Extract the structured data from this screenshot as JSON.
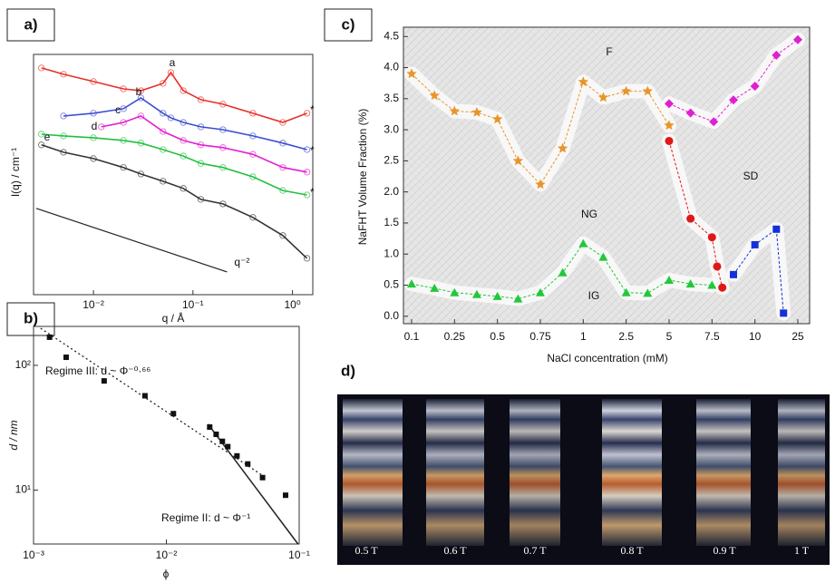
{
  "chart_data": [
    {
      "type": "line",
      "label": "a)",
      "xlabel": "q / Å",
      "ylabel": "I(q) / cm⁻¹",
      "log_x": true,
      "log_y": true,
      "xlim": [
        0.0025,
        1.6
      ],
      "ylim": [
        0.001,
        1000
      ],
      "xticks": [
        {
          "value": 0.01,
          "label": "10⁻²"
        },
        {
          "value": 0.1,
          "label": "10⁻¹"
        },
        {
          "value": 1,
          "label": "10⁰"
        }
      ],
      "series": [
        {
          "name": "a",
          "color": "#e8302a",
          "x": [
            0.003,
            0.005,
            0.01,
            0.02,
            0.03,
            0.05,
            0.06,
            0.08,
            0.12,
            0.2,
            0.4,
            0.8,
            1.4
          ],
          "values": [
            460,
            320,
            210,
            138,
            124,
            189,
            353,
            124,
            74,
            57,
            34,
            20,
            34
          ]
        },
        {
          "name": "b",
          "color": "#3a4fd0",
          "x": [
            0.005,
            0.01,
            0.02,
            0.03,
            0.05,
            0.06,
            0.08,
            0.12,
            0.2,
            0.4,
            0.8,
            1.4
          ],
          "values": [
            29,
            34,
            44,
            82,
            34,
            26,
            20,
            15.5,
            13.2,
            9.2,
            6.1,
            4.2
          ]
        },
        {
          "name": "c",
          "color": "#e020d0",
          "x": [
            0.012,
            0.02,
            0.03,
            0.05,
            0.08,
            0.12,
            0.2,
            0.4,
            0.8,
            1.4
          ],
          "values": [
            15.5,
            20,
            29,
            11.9,
            7.1,
            5.5,
            4.7,
            3.2,
            1.5,
            1.15
          ]
        },
        {
          "name": "d",
          "color": "#22c040",
          "x": [
            0.003,
            0.005,
            0.01,
            0.02,
            0.03,
            0.05,
            0.08,
            0.12,
            0.2,
            0.4,
            0.8,
            1.4
          ],
          "values": [
            10.2,
            9.2,
            8.3,
            7.1,
            6.1,
            4.2,
            2.9,
            1.9,
            1.5,
            0.88,
            0.4,
            0.31
          ]
        },
        {
          "name": "e",
          "color": "#333333",
          "x": [
            0.003,
            0.005,
            0.01,
            0.02,
            0.03,
            0.05,
            0.08,
            0.12,
            0.2,
            0.4,
            0.8,
            1.4
          ],
          "values": [
            5.5,
            3.6,
            2.5,
            1.5,
            1.03,
            0.68,
            0.45,
            0.24,
            0.185,
            0.085,
            0.03,
            0.0081
          ]
        }
      ],
      "guide": {
        "label": "q⁻²",
        "x": [
          0.00266,
          0.22
        ],
        "values": [
          0.143,
          0.0037
        ]
      },
      "annotations": [
        "*",
        "*",
        "*"
      ]
    },
    {
      "type": "scatter",
      "label": "b)",
      "xlabel": "ϕ",
      "ylabel": "d / nm",
      "log_x": true,
      "log_y": true,
      "xlim": [
        0.001,
        0.1
      ],
      "ylim": [
        3.7,
        205
      ],
      "xticks": [
        {
          "value": 0.001,
          "label": "10⁻³"
        },
        {
          "value": 0.01,
          "label": "10⁻²"
        },
        {
          "value": 0.1,
          "label": "10⁻¹"
        }
      ],
      "yticks": [
        {
          "value": 10,
          "label": "10¹"
        },
        {
          "value": 100,
          "label": "10²"
        }
      ],
      "color": "#111111",
      "x": [
        0.00132,
        0.00176,
        0.0034,
        0.0069,
        0.0113,
        0.0212,
        0.0237,
        0.0264,
        0.029,
        0.034,
        0.041,
        0.053,
        0.079
      ],
      "values": [
        168,
        116,
        75,
        57,
        41,
        32,
        28,
        24.6,
        22.3,
        18.8,
        16.2,
        12.6,
        9.1
      ],
      "fits": [
        {
          "label": "Regime III: d ~ Φ⁻⁰·⁶⁶",
          "style": "dotted",
          "x": [
            0.00113,
            0.053
          ],
          "values": [
            198,
            13.1
          ]
        },
        {
          "label": "Regime II: d ~ Φ⁻¹",
          "style": "solid",
          "x": [
            0.0206,
            0.098
          ],
          "values": [
            33.8,
            3.7
          ]
        }
      ]
    },
    {
      "type": "phase",
      "label": "c)",
      "xlabel": "NaCl concentration (mM)",
      "ylabel": "NaFHT Volume Fraction (%)",
      "xticks": [
        0.1,
        0.25,
        0.5,
        0.75,
        1,
        2.5,
        5,
        7.5,
        10,
        25
      ],
      "ylim": [
        -0.12,
        4.65
      ],
      "yticks": [
        {
          "value": 0,
          "label": "0.0"
        },
        0.5,
        {
          "value": 1,
          "label": "1.0"
        },
        1.5,
        {
          "value": 2,
          "label": "2.0"
        },
        2.5,
        {
          "value": 3,
          "label": "3.0"
        },
        3.5,
        {
          "value": 4,
          "label": "4.0"
        },
        4.5
      ],
      "series": [
        {
          "color": "#e8952a",
          "marker": "star",
          "x": [
            0.1,
            0.18,
            0.25,
            0.38,
            0.5,
            0.62,
            0.75,
            0.88,
            1,
            1.7,
            2.5,
            3.75,
            5
          ],
          "values": [
            3.9,
            3.55,
            3.3,
            3.28,
            3.17,
            2.5,
            2.12,
            2.7,
            3.77,
            3.52,
            3.62,
            3.62,
            3.07
          ]
        },
        {
          "color": "#e01818",
          "marker": "circle",
          "x": [
            5,
            6.25,
            7.5,
            7.8,
            8.1
          ],
          "values": [
            2.82,
            1.57,
            1.27,
            0.8,
            0.46
          ]
        },
        {
          "color": "#e020d0",
          "marker": "diamond",
          "x": [
            5,
            6.25,
            7.6,
            8.75,
            10,
            17.5,
            25
          ],
          "values": [
            3.42,
            3.27,
            3.13,
            3.48,
            3.7,
            4.2,
            4.45
          ]
        },
        {
          "color": "#1530d8",
          "marker": "square",
          "x": [
            8.75,
            10,
            17.5,
            20
          ],
          "values": [
            0.67,
            1.15,
            1.4,
            0.05
          ]
        },
        {
          "color": "#22c83a",
          "marker": "triangle",
          "x": [
            0.1,
            0.18,
            0.25,
            0.38,
            0.5,
            0.62,
            0.75,
            0.88,
            1,
            1.7,
            2.5,
            3.75,
            5,
            6.25,
            7.5
          ],
          "values": [
            0.52,
            0.45,
            0.38,
            0.35,
            0.32,
            0.28,
            0.38,
            0.7,
            1.17,
            0.95,
            0.38,
            0.37,
            0.58,
            0.52,
            0.5
          ]
        }
      ],
      "regions": [
        "F",
        "NG",
        "SD",
        "IG"
      ]
    }
  ],
  "photo": {
    "label": "d)",
    "captions": [
      "0.5 T",
      "0.6 T",
      "0.7 T",
      "0.8 T",
      "0.9 T",
      "1 T"
    ]
  }
}
